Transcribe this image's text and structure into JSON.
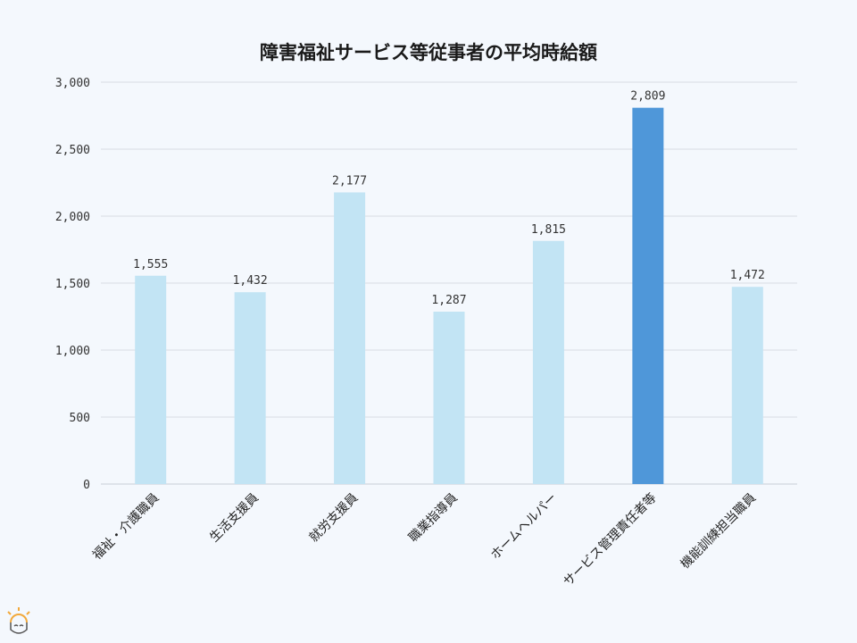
{
  "chart_data": {
    "type": "bar",
    "title": "障害福祉サービス等従事者の平均時給額",
    "categories": [
      "福祉・介護職員",
      "生活支援員",
      "就労支援員",
      "職業指導員",
      "ホームヘルパー",
      "サービス管理責任者等",
      "機能訓練担当職員"
    ],
    "values": [
      1555,
      1432,
      2177,
      1287,
      1815,
      2809,
      1472
    ],
    "value_labels": [
      "1,555",
      "1,432",
      "2,177",
      "1,287",
      "1,815",
      "2,809",
      "1,472"
    ],
    "yticks": [
      0,
      500,
      1000,
      1500,
      2000,
      2500,
      3000
    ],
    "ytick_labels": [
      "0",
      "500",
      "1,000",
      "1,500",
      "2,000",
      "2,500",
      "3,000"
    ],
    "ylim": [
      0,
      3000
    ],
    "grid": true,
    "highlight_index": 5,
    "colors": {
      "bar": "#c2e4f4",
      "highlight": "#4f97d9",
      "grid": "#d9dde3",
      "background": "#f4f8fd"
    }
  },
  "logo": {
    "icon": "sun-face-logo-icon",
    "color": "#f2a93b"
  }
}
